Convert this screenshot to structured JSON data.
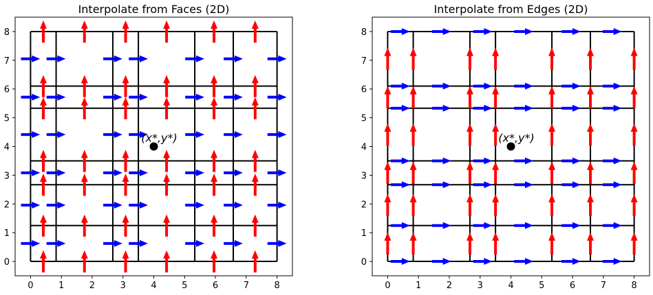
{
  "chart_data": [
    {
      "type": "diagram",
      "title": "Interpolate from Faces (2D)",
      "xlim": [
        -0.5,
        8.5
      ],
      "ylim": [
        -0.5,
        8.5
      ],
      "xticks": [
        "0",
        "1",
        "2",
        "3",
        "4",
        "5",
        "6",
        "7",
        "8"
      ],
      "yticks": [
        "0",
        "1",
        "2",
        "3",
        "4",
        "5",
        "6",
        "7",
        "8"
      ],
      "grid_nodes_x": [
        0,
        0.83,
        2.67,
        3.5,
        5.33,
        6.58,
        8
      ],
      "grid_nodes_y": [
        0,
        1.25,
        2.67,
        3.5,
        5.33,
        6.1,
        8
      ],
      "arrow_colors": {
        "x_face": "#0000ff",
        "y_face": "#ff0000"
      },
      "arrow_orientation": {
        "x_face": "right",
        "y_face": "up"
      },
      "point": {
        "x": 4,
        "y": 4,
        "label": "(x*,y*)"
      }
    },
    {
      "type": "diagram",
      "title": "Interpolate from Edges (2D)",
      "xlim": [
        -0.5,
        8.5
      ],
      "ylim": [
        -0.5,
        8.5
      ],
      "xticks": [
        "0",
        "1",
        "2",
        "3",
        "4",
        "5",
        "6",
        "7",
        "8"
      ],
      "yticks": [
        "0",
        "1",
        "2",
        "3",
        "4",
        "5",
        "6",
        "7",
        "8"
      ],
      "grid_nodes_x": [
        0,
        0.83,
        2.67,
        3.5,
        5.33,
        6.58,
        8
      ],
      "grid_nodes_y": [
        0,
        1.25,
        2.67,
        3.5,
        5.33,
        6.1,
        8
      ],
      "arrow_colors": {
        "x_edge": "#0000ff",
        "y_edge": "#ff0000"
      },
      "arrow_orientation": {
        "x_edge": "right",
        "y_edge": "up"
      },
      "point": {
        "x": 4,
        "y": 4,
        "label": "(x*,y*)"
      }
    }
  ]
}
